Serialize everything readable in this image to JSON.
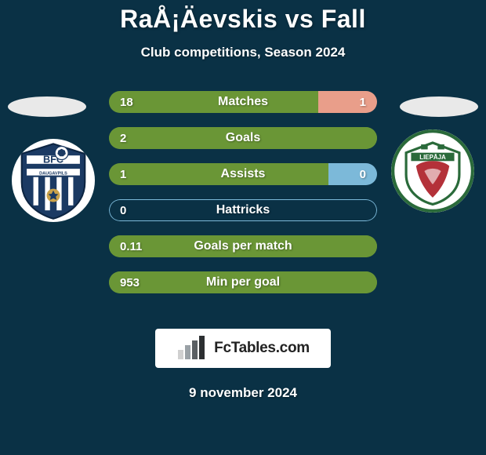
{
  "title": "RaÅ¡Äevskis vs Fall",
  "subtitle": "Club competitions, Season 2024",
  "date": "9 november 2024",
  "colors": {
    "background": "#0a3145",
    "green": "#6a9636",
    "lightblue": "#7cb9d9",
    "salmon": "#e99e8a",
    "text": "#ffffff"
  },
  "watermark": {
    "text": "FcTables.com",
    "bar_colors": [
      "#d0d0d0",
      "#9aa1a6",
      "#5a5f63",
      "#2c2f31"
    ]
  },
  "teams": {
    "left": {
      "name": "BFC Daugavpils",
      "shield_bg": "#1b3a63",
      "shield_stripe": "#ffffff",
      "shield_accent": "#caa24a",
      "text_on_shield": "BFC",
      "subtext_on_shield": "DAUGAVPILS"
    },
    "right": {
      "name": "FK Liepaja",
      "shield_bg": "#ffffff",
      "shield_border": "#2a6a3a",
      "shield_red": "#b43139"
    }
  },
  "bars": [
    {
      "label": "Matches",
      "left_val": "18",
      "right_val": "1",
      "left_pct": 78,
      "right_pct": 22,
      "left_color": "#6a9636",
      "right_color": "#e99e8a",
      "outline": "rgba(255,255,255,0)"
    },
    {
      "label": "Goals",
      "left_val": "2",
      "right_val": "",
      "left_pct": 100,
      "right_pct": 0,
      "left_color": "#6a9636",
      "right_color": "#6a9636",
      "outline": "#6a9636"
    },
    {
      "label": "Assists",
      "left_val": "1",
      "right_val": "0",
      "left_pct": 82,
      "right_pct": 18,
      "left_color": "#6a9636",
      "right_color": "#7cb9d9",
      "outline": "rgba(255,255,255,0)"
    },
    {
      "label": "Hattricks",
      "left_val": "0",
      "right_val": "",
      "left_pct": 0,
      "right_pct": 0,
      "left_color": "transparent",
      "right_color": "transparent",
      "outline": "#7cb9d9"
    },
    {
      "label": "Goals per match",
      "left_val": "0.11",
      "right_val": "",
      "left_pct": 100,
      "right_pct": 0,
      "left_color": "#6a9636",
      "right_color": "#6a9636",
      "outline": "#6a9636"
    },
    {
      "label": "Min per goal",
      "left_val": "953",
      "right_val": "",
      "left_pct": 100,
      "right_pct": 0,
      "left_color": "#6a9636",
      "right_color": "#6a9636",
      "outline": "#6a9636"
    }
  ]
}
